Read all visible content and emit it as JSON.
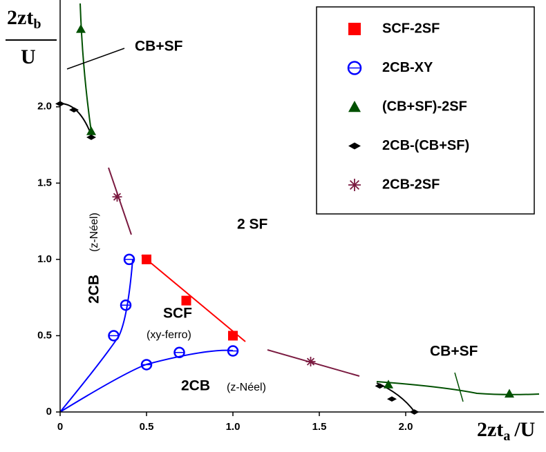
{
  "chart_data": {
    "type": "scatter",
    "y_label": {
      "text": "2zt",
      "subscript": "b",
      "denominator": "U"
    },
    "x_label": {
      "text": "2zt",
      "subscript": "a",
      "suffix": "/U"
    },
    "xlim": [
      0,
      2.8
    ],
    "ylim": [
      0,
      2.7
    ],
    "xticks": [
      0,
      0.5,
      {
        "value": 1,
        "label": "1.0"
      },
      1.5,
      {
        "value": 2,
        "label": "2.0"
      }
    ],
    "yticks": [
      0,
      0.5,
      {
        "value": 1,
        "label": "1.0"
      },
      1.5,
      {
        "value": 2,
        "label": "2.0"
      }
    ],
    "series": [
      {
        "name": "SCF-2SF",
        "color": "#ff0000",
        "marker": "square",
        "x": [
          0.5,
          0.73,
          1.0
        ],
        "values": [
          1.0,
          0.73,
          0.5
        ]
      },
      {
        "name": "2CB-XY",
        "color": "#0000ff",
        "marker": "circle",
        "x": [
          0.31,
          0.38,
          0.4,
          0.5,
          0.69,
          1.0
        ],
        "values": [
          0.5,
          0.7,
          1.0,
          0.31,
          0.39,
          0.4
        ]
      },
      {
        "name": "(CB+SF)-2SF",
        "color": "#005000",
        "marker": "triangle",
        "x": [
          0.12,
          0.18,
          1.9,
          2.6
        ],
        "values": [
          2.51,
          1.84,
          0.18,
          0.12
        ]
      },
      {
        "name": "2CB-(CB+SF)",
        "color": "#000000",
        "marker": "diamond",
        "x": [
          0,
          0.08,
          0.18,
          1.85,
          1.92,
          2.05
        ],
        "values": [
          2.02,
          1.98,
          1.8,
          0.17,
          0.085,
          0
        ]
      },
      {
        "name": "2CB-2SF",
        "color": "#7a1a40",
        "marker": "star",
        "x": [
          0.33,
          1.45
        ],
        "values": [
          1.41,
          0.33
        ]
      }
    ],
    "annotations": [
      "CB+SF",
      "2 SF",
      "2CB",
      "(z-Néel)",
      "SCF",
      "(xy-ferro)",
      "2CB",
      "(z-Néel)",
      "CB+SF"
    ]
  }
}
